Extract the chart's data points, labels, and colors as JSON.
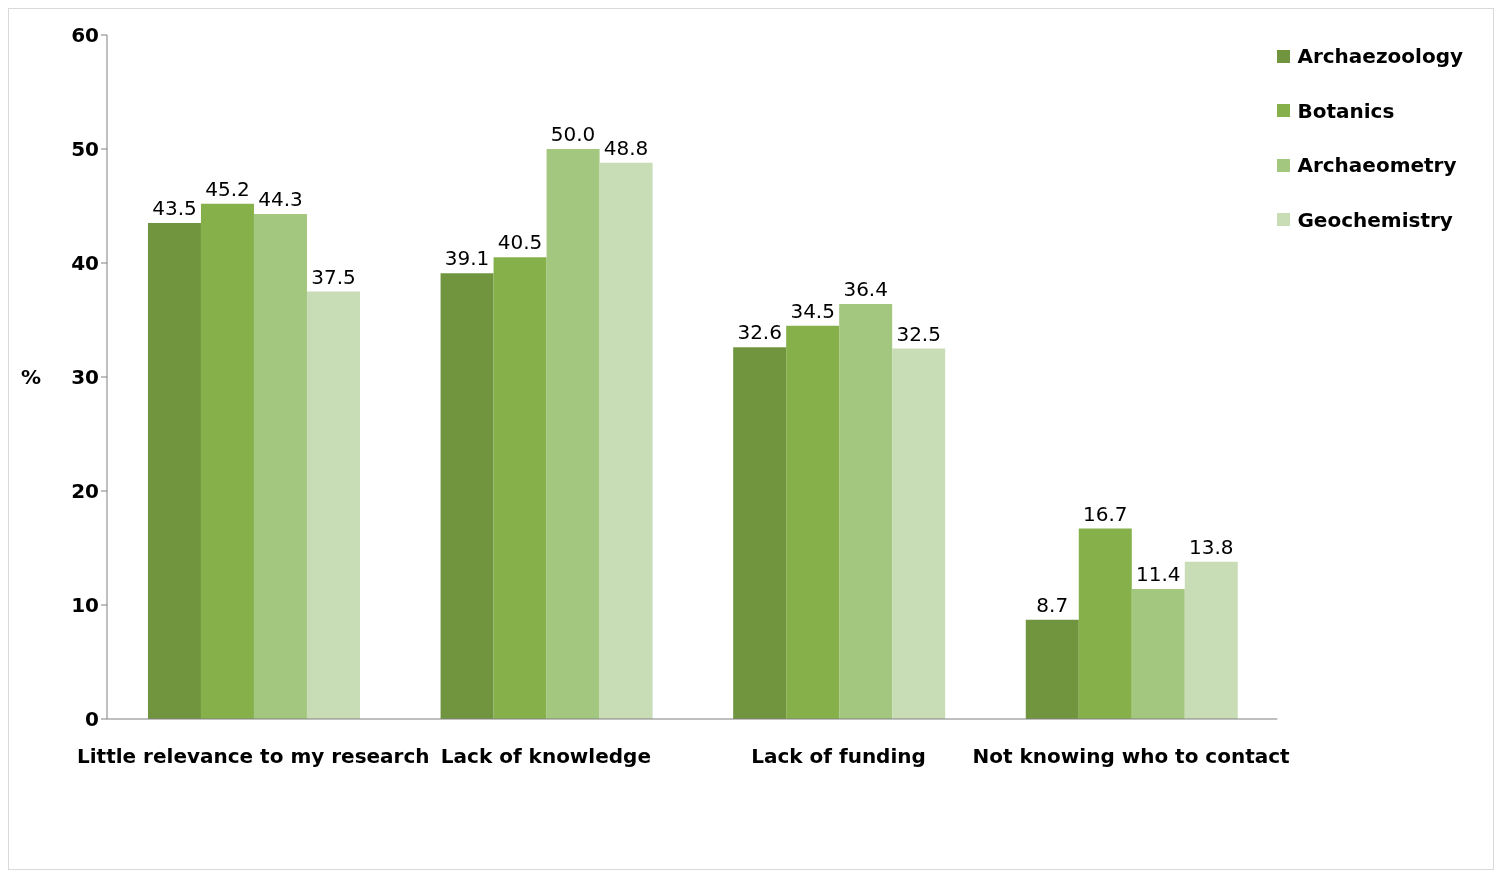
{
  "chart_data": {
    "type": "bar",
    "ylabel": "%",
    "categories": [
      "Little relevance to my research",
      "Lack of knowledge",
      "Lack of funding",
      "Not knowing who to contact"
    ],
    "series": [
      {
        "name": "Archaezoology",
        "color": "#70953e",
        "values": [
          43.5,
          39.1,
          32.6,
          8.7
        ],
        "value_labels": [
          "43.5",
          "39.1",
          "32.6",
          "8.7"
        ]
      },
      {
        "name": "Botanics",
        "color": "#86b04a",
        "values": [
          45.2,
          40.5,
          34.5,
          16.7
        ],
        "value_labels": [
          "45.2",
          "40.5",
          "34.5",
          "16.7"
        ]
      },
      {
        "name": "Archaeometry",
        "color": "#a4c77f",
        "values": [
          44.3,
          50.0,
          36.4,
          11.4
        ],
        "value_labels": [
          "44.3",
          "50.0",
          "36.4",
          "11.4"
        ]
      },
      {
        "name": "Geochemistry",
        "color": "#c8dcb5",
        "values": [
          37.5,
          48.8,
          32.5,
          13.8
        ],
        "value_labels": [
          "37.5",
          "48.8",
          "32.5",
          "13.8"
        ]
      }
    ],
    "ylim": [
      0,
      60
    ],
    "yticks": [
      0,
      10,
      20,
      30,
      40,
      50,
      60
    ],
    "grid": false,
    "legend": "top right"
  }
}
